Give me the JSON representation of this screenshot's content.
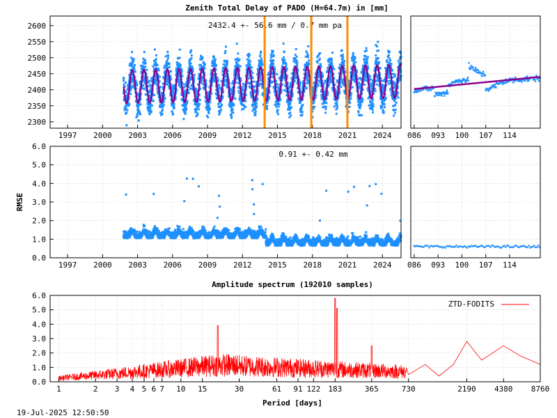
{
  "chart_data": [
    {
      "type": "scatter",
      "title": "Zenith Total Delay of PADO (H=64.7m) in [mm]",
      "annotation": "2432.4 +-  56.6 mm /  0.7 mm pa",
      "x_ticks": [
        "1997",
        "2000",
        "2003",
        "2006",
        "2009",
        "2012",
        "2015",
        "2018",
        "2021",
        "2024"
      ],
      "xlim": [
        1995.5,
        2025.6
      ],
      "y_ticks": [
        "2300",
        "2350",
        "2400",
        "2450",
        "2500",
        "2550",
        "2600"
      ],
      "ylim": [
        2280,
        2630
      ],
      "data_start": 2001.8,
      "data_end": 2025.6,
      "seasonal_fit": {
        "mean": 2418,
        "amplitude": 52,
        "trend_per_year": 0.7,
        "phase_peak": 0.55
      },
      "vertical_markers": [
        2013.9,
        2017.9,
        2021.0
      ],
      "colors": {
        "data": "#1e90ff",
        "fit": "#8b008b",
        "markers": "#ff8c00"
      }
    },
    {
      "type": "scatter",
      "x_ticks": [
        "086",
        "093",
        "100",
        "107",
        "114"
      ],
      "xlim": [
        85,
        123
      ],
      "ylim": [
        2280,
        2630
      ],
      "trend_line": [
        [
          86,
          2402
        ],
        [
          123,
          2440
        ]
      ],
      "colors": {
        "data": "#1e90ff",
        "fit": "#8b008b"
      }
    },
    {
      "type": "scatter",
      "ylabel": "RMSE",
      "annotation": "0.91 +-  0.42 mm",
      "x_ticks": [
        "1997",
        "2000",
        "2003",
        "2006",
        "2009",
        "2012",
        "2015",
        "2018",
        "2021",
        "2024"
      ],
      "xlim": [
        1995.5,
        2025.6
      ],
      "y_ticks": [
        "0.0",
        "1.0",
        "2.0",
        "3.0",
        "4.0",
        "5.0",
        "6.0"
      ],
      "ylim": [
        0,
        6
      ],
      "level_before_2014": 1.2,
      "level_after_2014": 0.8,
      "colors": {
        "data": "#1e90ff"
      }
    },
    {
      "type": "scatter",
      "x_ticks": [
        "086",
        "093",
        "100",
        "107",
        "114"
      ],
      "xlim": [
        85,
        123
      ],
      "ylim": [
        0,
        6
      ],
      "level": 0.6,
      "colors": {
        "data": "#1e90ff"
      }
    },
    {
      "type": "line",
      "title": "Amplitude spectrum (192010 samples)",
      "xlabel": "Period [days]",
      "legend": "ZTD-FODITS",
      "legend_position": "top-right",
      "x_scale": "log",
      "x_ticks": [
        "1",
        "2",
        "3",
        "4",
        "5",
        "6",
        "7",
        "10",
        "15",
        "30",
        "61",
        "91",
        "122",
        "183",
        "365",
        "730",
        "2190",
        "4380",
        "8760"
      ],
      "xlim": [
        0.85,
        8760
      ],
      "y_ticks": [
        "0.0",
        "1.0",
        "2.0",
        "3.0",
        "4.0",
        "5.0",
        "6.0"
      ],
      "ylim": [
        0,
        6
      ],
      "peaks": [
        {
          "period": 183,
          "amplitude": 5.8
        },
        {
          "period": 190,
          "amplitude": 5.1
        },
        {
          "period": 20,
          "amplitude": 3.9
        },
        {
          "period": 365,
          "amplitude": 2.5
        },
        {
          "period": 2190,
          "amplitude": 2.8
        },
        {
          "period": 4380,
          "amplitude": 2.5
        }
      ],
      "long_period_line": [
        [
          730,
          0.5
        ],
        [
          1000,
          1.2
        ],
        [
          1300,
          0.4
        ],
        [
          1700,
          1.2
        ],
        [
          2190,
          2.8
        ],
        [
          2900,
          1.5
        ],
        [
          4380,
          2.5
        ],
        [
          6000,
          1.8
        ],
        [
          8760,
          1.2
        ]
      ],
      "colors": {
        "line": "#ff0000"
      }
    }
  ],
  "footer": {
    "timestamp": "19-Jul-2025 12:50:50"
  }
}
